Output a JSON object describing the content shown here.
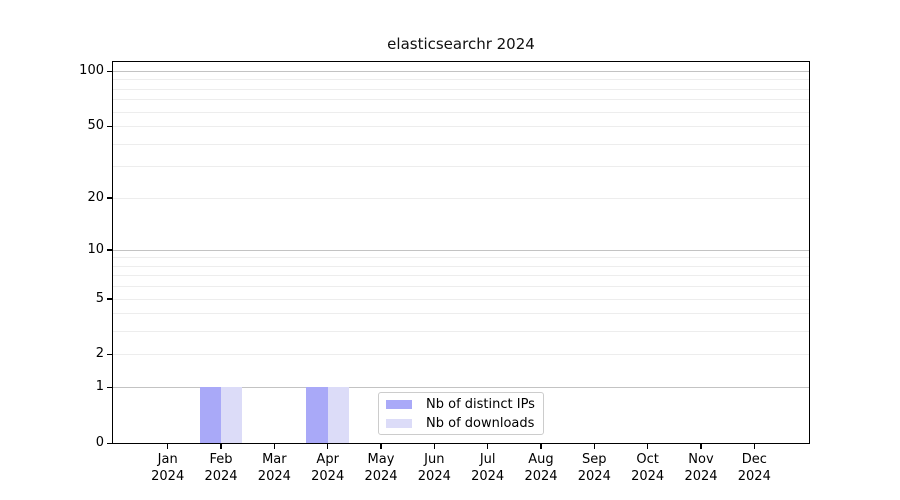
{
  "title": "elasticsearchr 2024",
  "legend": {
    "items": [
      {
        "label": "Nb of distinct IPs",
        "color": "#a9a9f8"
      },
      {
        "label": "Nb of downloads",
        "color": "#dcdcf8"
      }
    ]
  },
  "chart_data": {
    "type": "bar",
    "title": "elasticsearchr 2024",
    "categories": [
      "Jan",
      "Feb",
      "Mar",
      "Apr",
      "May",
      "Jun",
      "Jul",
      "Aug",
      "Sep",
      "Oct",
      "Nov",
      "Dec"
    ],
    "year": "2024",
    "series": [
      {
        "name": "Nb of distinct IPs",
        "color": "#a9a9f8",
        "values": [
          0,
          1,
          0,
          1,
          0,
          0,
          0,
          0,
          0,
          0,
          0,
          0
        ]
      },
      {
        "name": "Nb of downloads",
        "color": "#dcdcf8",
        "values": [
          0,
          1,
          0,
          1,
          0,
          0,
          0,
          0,
          0,
          0,
          0,
          0
        ]
      }
    ],
    "xlabel": "",
    "ylabel": "",
    "yscale": "log1p",
    "ylim": [
      0,
      112
    ],
    "ytick_values": [
      0,
      1,
      2,
      5,
      10,
      20,
      50,
      100
    ],
    "ytick_labels": [
      "0",
      "1",
      "2",
      "5",
      "10",
      "20",
      "50",
      "100"
    ],
    "major_grid_values": [
      1,
      10,
      100
    ],
    "minor_grid_values": [
      2,
      3,
      4,
      5,
      6,
      7,
      8,
      9,
      20,
      30,
      40,
      50,
      60,
      70,
      80,
      90
    ],
    "grid": true,
    "legend_position": "lower center"
  }
}
